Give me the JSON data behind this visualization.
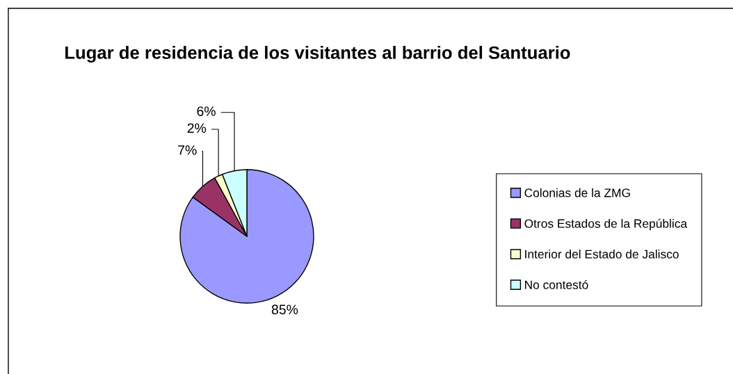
{
  "chart_data": {
    "type": "pie",
    "title": "Lugar de residencia de los visitantes al barrio del Santuario",
    "categories": [
      "Colonias de la ZMG",
      "Otros Estados de la República",
      "Interior del Estado de Jalisco",
      "No contestó"
    ],
    "values": [
      85,
      7,
      2,
      6
    ],
    "value_labels": [
      "85%",
      "7%",
      "2%",
      "6%"
    ],
    "colors": [
      "#9999ff",
      "#993366",
      "#ffffcc",
      "#ccffff"
    ],
    "legend": "right"
  }
}
